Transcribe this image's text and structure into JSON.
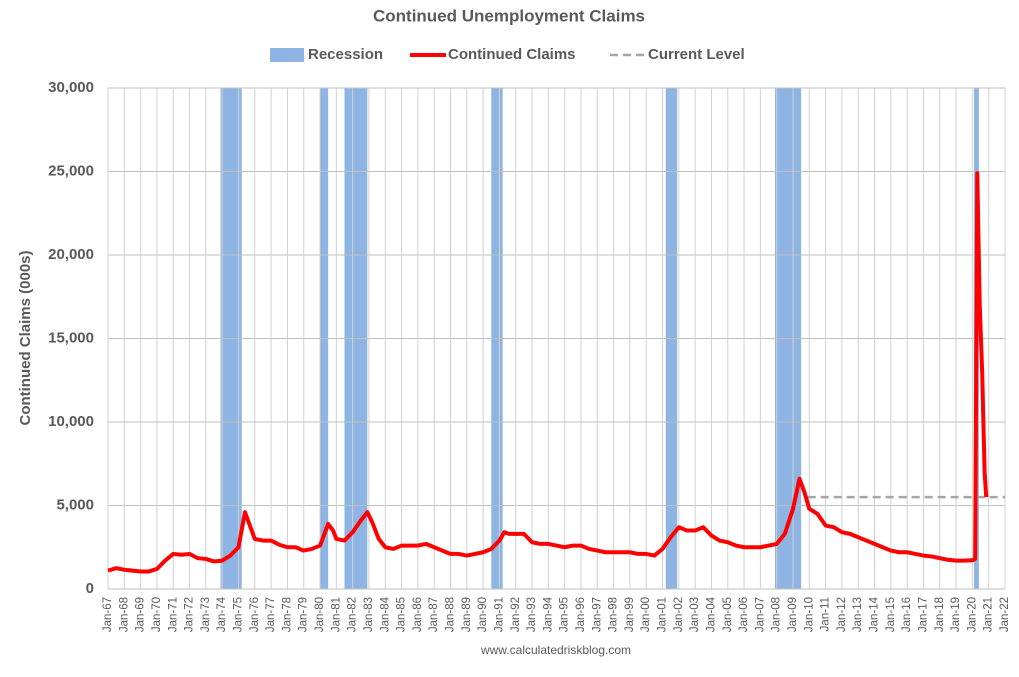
{
  "chart_data": {
    "type": "line",
    "title": "Continued Unemployment Claims",
    "ylabel": "Continued Claims (000s)",
    "source": "www.calculatedriskblog.com",
    "recession": {
      "name": "Recession",
      "color": "#8eb4e3",
      "ranges": [
        [
          1973.9,
          1975.2
        ],
        [
          1980.0,
          1980.5
        ],
        [
          1981.5,
          1982.9
        ],
        [
          1990.5,
          1991.2
        ],
        [
          2001.2,
          2001.9
        ],
        [
          2007.9,
          2009.5
        ],
        [
          2020.1,
          2020.4
        ]
      ]
    },
    "series": [
      {
        "name": "Continued Claims",
        "color": "#ff0000",
        "x": [
          1967,
          1967.5,
          1968,
          1968.5,
          1969,
          1969.5,
          1970,
          1970.5,
          1971,
          1971.5,
          1972,
          1972.5,
          1973,
          1973.5,
          1974,
          1974.5,
          1975,
          1975.4,
          1975.7,
          1976,
          1976.5,
          1977,
          1977.5,
          1978,
          1978.5,
          1979,
          1979.5,
          1980,
          1980.5,
          1980.8,
          1981,
          1981.5,
          1982,
          1982.5,
          1982.9,
          1983.2,
          1983.6,
          1984,
          1984.5,
          1985,
          1985.5,
          1986,
          1986.5,
          1987,
          1987.5,
          1988,
          1988.5,
          1989,
          1989.5,
          1990,
          1990.5,
          1991,
          1991.3,
          1991.6,
          1992,
          1992.5,
          1993,
          1993.5,
          1994,
          1994.5,
          1995,
          1995.5,
          1996,
          1996.5,
          1997,
          1997.5,
          1998,
          1998.5,
          1999,
          1999.5,
          2000,
          2000.5,
          2001,
          2001.5,
          2002,
          2002.5,
          2003,
          2003.5,
          2004,
          2004.5,
          2005,
          2005.5,
          2006,
          2006.5,
          2007,
          2007.5,
          2008,
          2008.5,
          2009,
          2009.4,
          2009.7,
          2010,
          2010.5,
          2011,
          2011.5,
          2012,
          2012.5,
          2013,
          2013.5,
          2014,
          2014.5,
          2015,
          2015.5,
          2016,
          2016.5,
          2017,
          2017.5,
          2018,
          2018.5,
          2019,
          2019.5,
          2020,
          2020.17,
          2020.3,
          2020.45,
          2020.6,
          2020.75,
          2020.85
        ],
        "values": [
          1100,
          1250,
          1150,
          1100,
          1050,
          1050,
          1200,
          1700,
          2100,
          2050,
          2100,
          1850,
          1800,
          1650,
          1700,
          2000,
          2500,
          4600,
          3800,
          3000,
          2900,
          2900,
          2650,
          2500,
          2500,
          2300,
          2400,
          2600,
          3900,
          3500,
          3000,
          2900,
          3400,
          4100,
          4600,
          4000,
          3000,
          2500,
          2400,
          2600,
          2600,
          2600,
          2700,
          2500,
          2300,
          2100,
          2100,
          2000,
          2100,
          2200,
          2400,
          2900,
          3400,
          3300,
          3300,
          3300,
          2800,
          2700,
          2700,
          2600,
          2500,
          2600,
          2600,
          2400,
          2300,
          2200,
          2200,
          2200,
          2200,
          2100,
          2100,
          2000,
          2400,
          3100,
          3700,
          3500,
          3500,
          3700,
          3200,
          2900,
          2800,
          2600,
          2500,
          2500,
          2500,
          2600,
          2700,
          3300,
          4800,
          6600,
          5800,
          4800,
          4500,
          3800,
          3700,
          3400,
          3300,
          3100,
          2900,
          2700,
          2500,
          2300,
          2200,
          2200,
          2100,
          2000,
          1950,
          1850,
          1750,
          1700,
          1700,
          1720,
          1800,
          24900,
          17000,
          13000,
          7000,
          5500
        ]
      }
    ],
    "current_level": {
      "name": "Current Level",
      "color": "#a6a6a6",
      "value": 5500,
      "x": [
        2009.9,
        2022
      ]
    },
    "xlim": [
      1967,
      2022
    ],
    "xticks": [
      {
        "value": 1967,
        "label": "Jan-67"
      },
      {
        "value": 1968,
        "label": "Jan-68"
      },
      {
        "value": 1969,
        "label": "Jan-69"
      },
      {
        "value": 1970,
        "label": "Jan-70"
      },
      {
        "value": 1971,
        "label": "Jan-71"
      },
      {
        "value": 1972,
        "label": "Jan-72"
      },
      {
        "value": 1973,
        "label": "Jan-73"
      },
      {
        "value": 1974,
        "label": "Jan-74"
      },
      {
        "value": 1975,
        "label": "Jan-75"
      },
      {
        "value": 1976,
        "label": "Jan-76"
      },
      {
        "value": 1977,
        "label": "Jan-77"
      },
      {
        "value": 1978,
        "label": "Jan-78"
      },
      {
        "value": 1979,
        "label": "Jan-79"
      },
      {
        "value": 1980,
        "label": "Jan-80"
      },
      {
        "value": 1981,
        "label": "Jan-81"
      },
      {
        "value": 1982,
        "label": "Jan-82"
      },
      {
        "value": 1983,
        "label": "Jan-83"
      },
      {
        "value": 1984,
        "label": "Jan-84"
      },
      {
        "value": 1985,
        "label": "Jan-85"
      },
      {
        "value": 1986,
        "label": "Jan-86"
      },
      {
        "value": 1987,
        "label": "Jan-87"
      },
      {
        "value": 1988,
        "label": "Jan-88"
      },
      {
        "value": 1989,
        "label": "Jan-89"
      },
      {
        "value": 1990,
        "label": "Jan-90"
      },
      {
        "value": 1991,
        "label": "Jan-91"
      },
      {
        "value": 1992,
        "label": "Jan-92"
      },
      {
        "value": 1993,
        "label": "Jan-93"
      },
      {
        "value": 1994,
        "label": "Jan-94"
      },
      {
        "value": 1995,
        "label": "Jan-95"
      },
      {
        "value": 1996,
        "label": "Jan-96"
      },
      {
        "value": 1997,
        "label": "Jan-97"
      },
      {
        "value": 1998,
        "label": "Jan-98"
      },
      {
        "value": 1999,
        "label": "Jan-99"
      },
      {
        "value": 2000,
        "label": "Jan-00"
      },
      {
        "value": 2001,
        "label": "Jan-01"
      },
      {
        "value": 2002,
        "label": "Jan-02"
      },
      {
        "value": 2003,
        "label": "Jan-03"
      },
      {
        "value": 2004,
        "label": "Jan-04"
      },
      {
        "value": 2005,
        "label": "Jan-05"
      },
      {
        "value": 2006,
        "label": "Jan-06"
      },
      {
        "value": 2007,
        "label": "Jan-07"
      },
      {
        "value": 2008,
        "label": "Jan-08"
      },
      {
        "value": 2009,
        "label": "Jan-09"
      },
      {
        "value": 2010,
        "label": "Jan-10"
      },
      {
        "value": 2011,
        "label": "Jan-11"
      },
      {
        "value": 2012,
        "label": "Jan-12"
      },
      {
        "value": 2013,
        "label": "Jan-13"
      },
      {
        "value": 2014,
        "label": "Jan-14"
      },
      {
        "value": 2015,
        "label": "Jan-15"
      },
      {
        "value": 2016,
        "label": "Jan-16"
      },
      {
        "value": 2017,
        "label": "Jan-17"
      },
      {
        "value": 2018,
        "label": "Jan-18"
      },
      {
        "value": 2019,
        "label": "Jan-19"
      },
      {
        "value": 2020,
        "label": "Jan-20"
      },
      {
        "value": 2021,
        "label": "Jan-21"
      },
      {
        "value": 2022,
        "label": "Jan-22"
      }
    ],
    "ylim": [
      0,
      30000
    ],
    "yticks": [
      0,
      {
        "value": 5000,
        "label": "5,000"
      },
      {
        "value": 10000,
        "label": "10,000"
      },
      {
        "value": 15000,
        "label": "15,000"
      },
      {
        "value": 20000,
        "label": "20,000"
      },
      {
        "value": 25000,
        "label": "25,000"
      },
      {
        "value": 30000,
        "label": "30,000"
      }
    ],
    "grid": true
  }
}
